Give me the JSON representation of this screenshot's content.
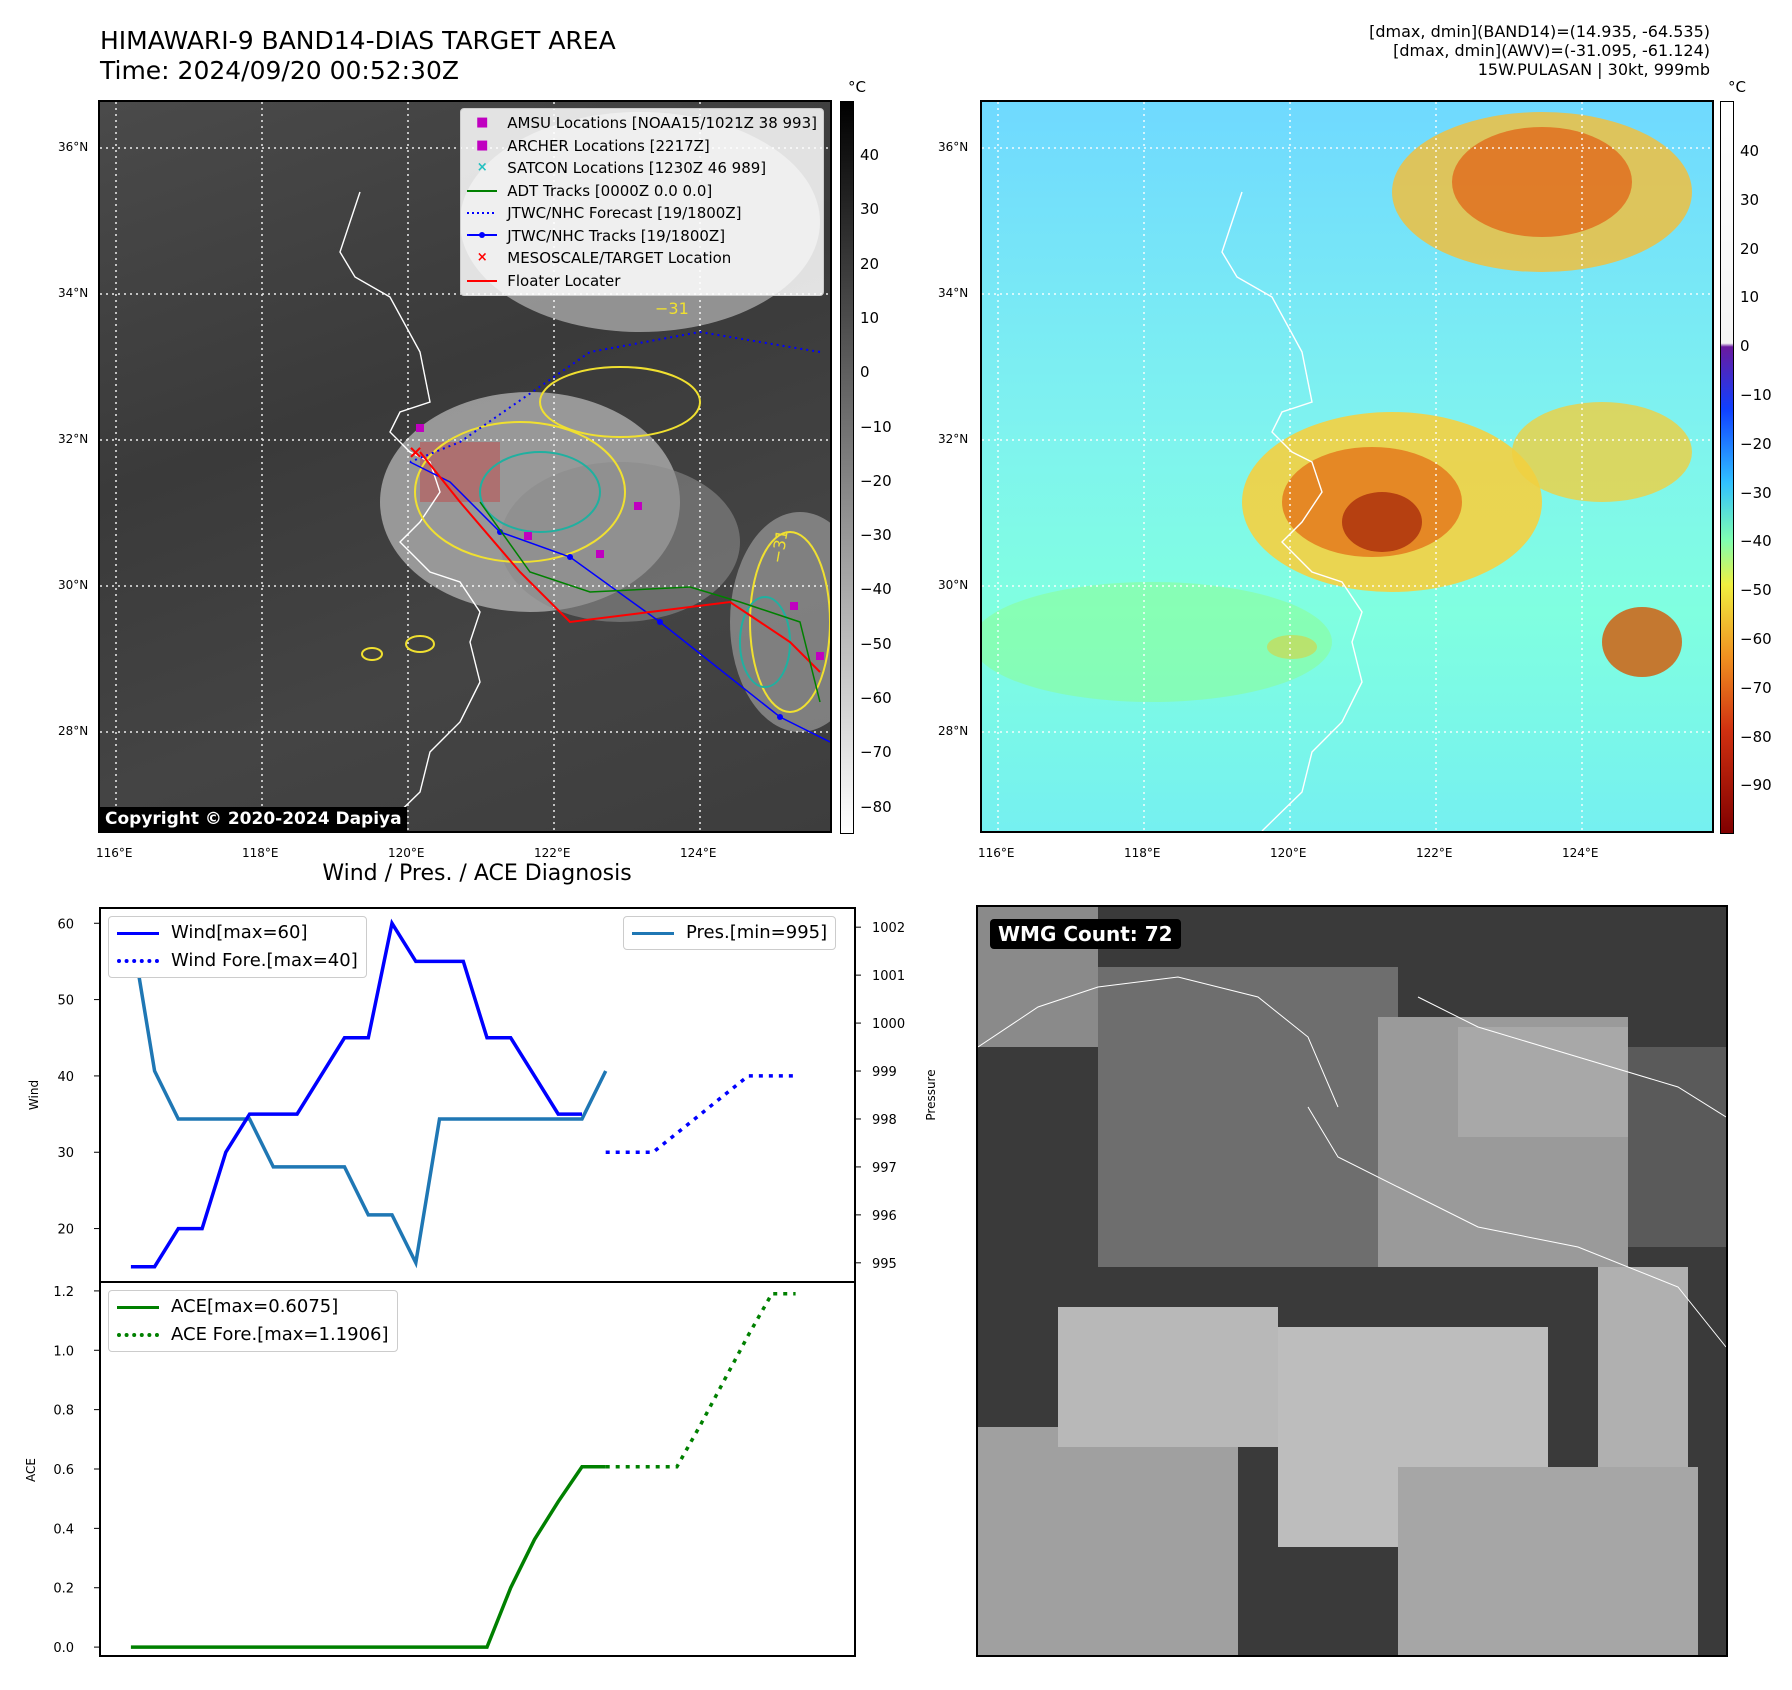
{
  "header": {
    "title_line1": "HIMAWARI-9 BAND14-DIAS TARGET AREA",
    "title_line2": "Time: 2024/09/20 00:52:30Z",
    "info_line1": "[dmax, dmin](BAND14)=(14.935, -64.535)",
    "info_line2": "[dmax, dmin](AWV)=(-31.095, -61.124)",
    "info_line3": "15W.PULASAN | 30kt, 999mb"
  },
  "ir_panel": {
    "unit": "°C",
    "colorbar_ticks": [
      "40",
      "30",
      "20",
      "10",
      "0",
      "−10",
      "−20",
      "−30",
      "−40",
      "−50",
      "−60",
      "−70",
      "−80"
    ],
    "lat_labels": [
      "36°N",
      "34°N",
      "32°N",
      "30°N",
      "28°N"
    ],
    "lon_labels": [
      "116°E",
      "118°E",
      "120°E",
      "122°E",
      "124°E"
    ],
    "contour_labels": [
      "−31",
      "−31"
    ],
    "copyright": "Copyright © 2020-2024 Dapiya",
    "legend": [
      {
        "label": "AMSU Locations [NOAA15/1021Z 38 993]",
        "marker": "■",
        "color": "#c000c0"
      },
      {
        "label": "ARCHER Locations [2217Z]",
        "marker": "■",
        "color": "#c000c0"
      },
      {
        "label": "SATCON Locations [1230Z 46 989]",
        "marker": "×",
        "color": "#20c0c0"
      },
      {
        "label": "ADT Tracks [0000Z 0.0 0.0]",
        "marker": "line",
        "color": "#008000"
      },
      {
        "label": "JTWC/NHC Forecast [19/1800Z]",
        "marker": "dotted",
        "color": "#0000ff"
      },
      {
        "label": "JTWC/NHC Tracks [19/1800Z]",
        "marker": "dotline",
        "color": "#0000ff"
      },
      {
        "label": "MESOSCALE/TARGET Location",
        "marker": "×",
        "color": "#ff0000"
      },
      {
        "label": "Floater Locater",
        "marker": "line",
        "color": "#ff0000"
      }
    ]
  },
  "awv_panel": {
    "unit": "°C",
    "colorbar_ticks": [
      "40",
      "30",
      "20",
      "10",
      "0",
      "−10",
      "−20",
      "−30",
      "−40",
      "−50",
      "−60",
      "−70",
      "−80",
      "−90"
    ],
    "lat_labels": [
      "36°N",
      "34°N",
      "32°N",
      "30°N",
      "28°N"
    ],
    "lon_labels": [
      "116°E",
      "118°E",
      "120°E",
      "122°E",
      "124°E"
    ]
  },
  "wmg_panel": {
    "count_label": "WMG Count: 72"
  },
  "chart_data": [
    {
      "type": "line",
      "title": "Wind / Pres. / ACE Diagnosis",
      "ylabel": "Wind",
      "ylabel_right": "Pressure",
      "ylim": [
        13,
        62
      ],
      "ylim_right": [
        994.6,
        1002.4
      ],
      "y_ticks": [
        20,
        30,
        40,
        50,
        60
      ],
      "y_ticks_right": [
        995,
        996,
        997,
        998,
        999,
        1000,
        1001,
        1002
      ],
      "series": [
        {
          "name": "Wind[max=60]",
          "color": "#0000ff",
          "style": "solid",
          "axis": "left",
          "x": [
            0,
            1,
            2,
            3,
            4,
            5,
            6,
            7,
            8,
            9,
            10,
            11,
            12,
            13,
            14,
            15,
            16,
            17,
            18,
            19
          ],
          "values": [
            15,
            15,
            20,
            20,
            30,
            35,
            35,
            35,
            40,
            45,
            45,
            60,
            55,
            55,
            55,
            45,
            45,
            40,
            35,
            35
          ]
        },
        {
          "name": "Wind Fore.[max=40]",
          "color": "#0000ff",
          "style": "dotted",
          "axis": "left",
          "x": [
            20,
            21,
            22,
            23,
            24,
            25,
            26,
            27,
            28
          ],
          "values": [
            30,
            30,
            30,
            32.5,
            35,
            37.5,
            40,
            40,
            40
          ]
        },
        {
          "name": "Pres.[min=995]",
          "color": "#1f77b4",
          "style": "solid",
          "axis": "right",
          "x": [
            0,
            1,
            2,
            3,
            4,
            5,
            6,
            7,
            8,
            9,
            10,
            11,
            12,
            13,
            14,
            15,
            16,
            17,
            18,
            19,
            20
          ],
          "values": [
            1002,
            999,
            998,
            998,
            998,
            998,
            997,
            997,
            997,
            997,
            996,
            996,
            995,
            998,
            998,
            998,
            998,
            998,
            998,
            998,
            999
          ]
        }
      ],
      "x_range": [
        -1.3,
        30.5
      ]
    },
    {
      "type": "line",
      "ylabel": "ACE",
      "ylim": [
        -0.03,
        1.23
      ],
      "y_ticks": [
        0.0,
        0.2,
        0.4,
        0.6,
        0.8,
        1.0,
        1.2
      ],
      "series": [
        {
          "name": "ACE[max=0.6075]",
          "color": "#008000",
          "style": "solid",
          "x": [
            0,
            1,
            2,
            3,
            4,
            5,
            6,
            7,
            8,
            9,
            10,
            11,
            12,
            13,
            14,
            15,
            16,
            17,
            18,
            19,
            20
          ],
          "values": [
            0,
            0,
            0,
            0,
            0,
            0,
            0,
            0,
            0,
            0,
            0,
            0,
            0,
            0,
            0,
            0,
            0.2,
            0.3625,
            0.49,
            0.6075,
            0.6075
          ]
        },
        {
          "name": "ACE Fore.[max=1.1906]",
          "color": "#008000",
          "style": "dotted",
          "x": [
            20,
            21,
            22,
            23,
            24,
            25,
            26,
            27,
            28
          ],
          "values": [
            0.6075,
            0.6075,
            0.6075,
            0.6075,
            0.75,
            0.9,
            1.05,
            1.1906,
            1.1906
          ]
        }
      ],
      "x_range": [
        -1.3,
        30.5
      ]
    }
  ]
}
